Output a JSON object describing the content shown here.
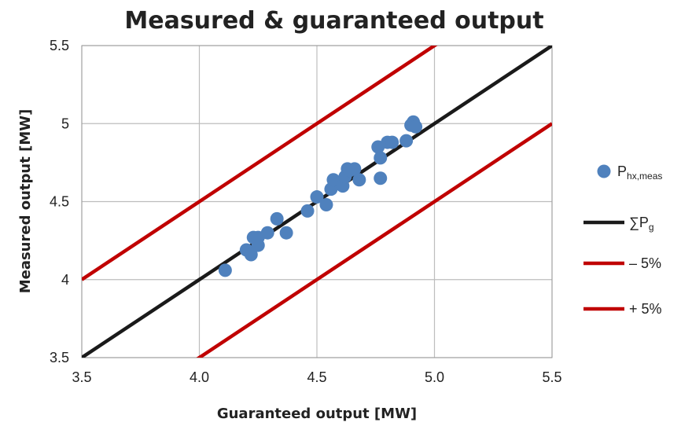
{
  "chart_data": {
    "type": "scatter",
    "title": "Measured & guaranteed output",
    "xlabel": "Guaranteed output [MW]",
    "ylabel": "Measured output [MW]",
    "xlim": [
      3.5,
      5.5
    ],
    "ylim": [
      3.5,
      5.5
    ],
    "x_ticks": [
      3.5,
      4.0,
      4.5,
      5.0,
      5.5
    ],
    "x_tick_labels": [
      "3.5",
      "4.0",
      "4.5",
      "5.0",
      "5.5"
    ],
    "y_ticks": [
      3.5,
      4,
      4.5,
      5,
      5.5
    ],
    "y_tick_labels": [
      "3.5",
      "4",
      "4.5",
      "5",
      "5.5"
    ],
    "grid": true,
    "legend_position": "right",
    "series": [
      {
        "name": "P",
        "name_sub": "hx,meas",
        "kind": "scatter",
        "color": "#4f81bd",
        "x": [
          4.11,
          4.2,
          4.22,
          4.23,
          4.25,
          4.25,
          4.29,
          4.33,
          4.37,
          4.46,
          4.5,
          4.54,
          4.56,
          4.57,
          4.61,
          4.62,
          4.63,
          4.64,
          4.66,
          4.68,
          4.76,
          4.77,
          4.77,
          4.8,
          4.82,
          4.88,
          4.9,
          4.91,
          4.92
        ],
        "y": [
          4.06,
          4.19,
          4.16,
          4.27,
          4.22,
          4.27,
          4.3,
          4.39,
          4.3,
          4.44,
          4.53,
          4.48,
          4.58,
          4.64,
          4.6,
          4.66,
          4.71,
          4.7,
          4.71,
          4.64,
          4.85,
          4.78,
          4.65,
          4.88,
          4.88,
          4.89,
          4.99,
          5.01,
          4.98
        ]
      },
      {
        "name": "∑P",
        "name_sub": "g",
        "kind": "line",
        "color": "#1a1a1a",
        "x": [
          3.5,
          5.5
        ],
        "y": [
          3.5,
          5.5
        ]
      },
      {
        "name": "– 5%",
        "kind": "line",
        "color": "#c00000",
        "x": [
          3.5,
          5.5
        ],
        "y": [
          4.0,
          6.0
        ]
      },
      {
        "name": "+ 5%",
        "kind": "line",
        "color": "#c00000",
        "x": [
          3.5,
          5.5
        ],
        "y": [
          3.0,
          5.0
        ]
      }
    ]
  }
}
